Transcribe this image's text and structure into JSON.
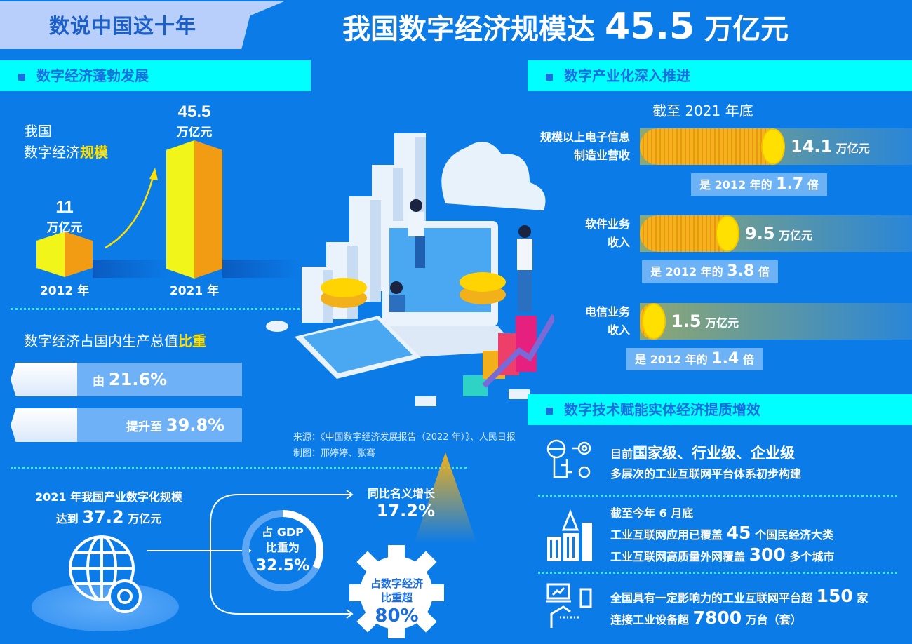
{
  "header": {
    "banner": "数说中国这十年",
    "title_prefix": "我国数字经济规模达",
    "title_number": "45.5",
    "title_unit": "万亿元"
  },
  "scale_section": {
    "heading": "数字经济蓬勃发展",
    "label_line1": "我国",
    "label_line2_plain": "数字经济",
    "label_line2_highlight": "规模",
    "bars": [
      {
        "year": "2012 年",
        "value": "11",
        "unit": "万亿元"
      },
      {
        "year": "2021 年",
        "value": "45.5",
        "unit": "万亿元"
      }
    ]
  },
  "share_section": {
    "title_plain": "数字经济占国内生产总值",
    "title_highlight": "比重",
    "from_label": "由",
    "from_value": "21.6%",
    "to_label": "提升至",
    "to_value": "39.8%"
  },
  "source": {
    "line1": "来源：《中国数字经济发展报告（2022 年）》、人民日报",
    "line2": "制图：邢婷婷、张骞"
  },
  "industry_digitization": {
    "title_line1": "2021 年我国产业数字化规模",
    "title_prefix": "达到",
    "value": "37.2",
    "unit": "万亿元",
    "gdp_label1": "占 GDP",
    "gdp_label2": "比重为",
    "gdp_value": "32.5%",
    "gdp_share": 32.5,
    "growth_label": "同比名义增长",
    "growth_value": "17.2%",
    "econ_label1": "占数字经济",
    "econ_label2": "比重超",
    "econ_value": "80%"
  },
  "digital_industry": {
    "heading": "数字产业化深入推进",
    "subtitle": "截至 2021 年底",
    "rows": [
      {
        "label1": "规模以上电子信息",
        "label2": "制造业营收",
        "value": "14.1",
        "unit": "万亿元",
        "mult_prefix": "是 2012 年的",
        "mult": "1.7",
        "mult_suffix": "倍"
      },
      {
        "label1": "软件业务",
        "label2": "收入",
        "value": "9.5",
        "unit": "万亿元",
        "mult_prefix": "是 2012 年的",
        "mult": "3.8",
        "mult_suffix": "倍"
      },
      {
        "label1": "电信业务",
        "label2": "收入",
        "value": "1.5",
        "unit": "万亿元",
        "mult_prefix": "是 2012 年的",
        "mult": "1.4",
        "mult_suffix": "倍"
      }
    ]
  },
  "empowerment": {
    "heading": "数字技术赋能实体经济提质增效",
    "item1": {
      "prefix": "目前",
      "highlight": "国家级、行业级、企业级",
      "line2": "多层次的工业互联网平台体系初步构建"
    },
    "item2": {
      "line1": "截至今年 6 月底",
      "l2_prefix": "工业互联网应用已覆盖",
      "l2_num": "45",
      "l2_suffix": "个国民经济大类",
      "l3_prefix": "工业互联网高质量外网覆盖",
      "l3_num": "300",
      "l3_suffix": "多个城市"
    },
    "item3": {
      "l1_prefix": "全国具有一定影响力的工业互联网平台超",
      "l1_num": "150",
      "l1_suffix": "家",
      "l2_prefix": "连接工业设备超",
      "l2_num": "7800",
      "l2_suffix": "万台（套）"
    }
  },
  "colors": {
    "background": "#0b7be8",
    "section_header": "#00ffff",
    "highlight": "#ffe000",
    "banner": "#b7cffa"
  }
}
